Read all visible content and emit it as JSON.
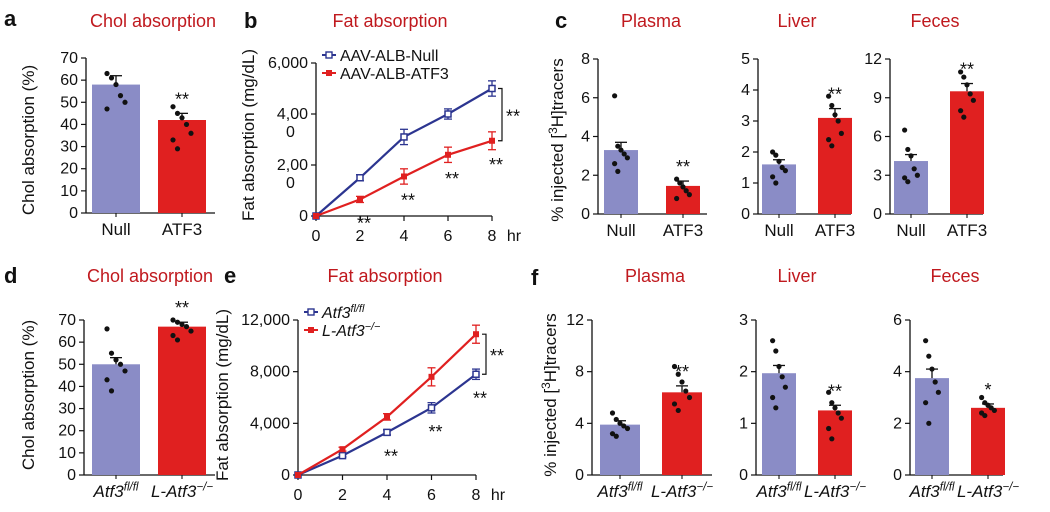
{
  "colors": {
    "null_bar": "#8a8cc6",
    "atf3_bar": "#e02020",
    "title": "#c0191e",
    "null_line": "#2c3590",
    "atf3_line": "#e02020",
    "axis": "#111111"
  },
  "chart_data": [
    {
      "id": "a",
      "panel_letter": "a",
      "type": "bar",
      "title": "Chol absorption",
      "ylabel": "Chol absorption (%)",
      "categories": [
        "Null",
        "ATF3"
      ],
      "category_italic": false,
      "values": [
        58,
        42
      ],
      "errors": [
        4,
        3
      ],
      "ylim": [
        0,
        70
      ],
      "yticks": [
        0,
        10,
        20,
        30,
        40,
        50,
        60,
        70
      ],
      "ytick_labels": [
        "0",
        "10",
        "20",
        "30",
        "40",
        "50",
        "60",
        "70"
      ],
      "sig": [
        "",
        "**"
      ],
      "points": [
        [
          63,
          61,
          58,
          53,
          50,
          47
        ],
        [
          48,
          45,
          43,
          40,
          36,
          33,
          29
        ]
      ]
    },
    {
      "id": "b",
      "panel_letter": "b",
      "type": "line",
      "title": "Fat absorption",
      "ylabel": "Fat absorption (mg/dL)",
      "x": [
        0,
        2,
        4,
        6,
        8
      ],
      "xticks": [
        0,
        2,
        4,
        6,
        8
      ],
      "xtick_labels": [
        "0",
        "2",
        "4",
        "6",
        "8"
      ],
      "xunit": "hr",
      "ylim": [
        0,
        6000
      ],
      "yticks": [
        0,
        2000,
        4000,
        6000
      ],
      "ytick_labels": [
        "0",
        "2,00\n0",
        "4,00\n0",
        "6,000"
      ],
      "legend": [
        "AAV-ALB-Null",
        "AAV-ALB-ATF3"
      ],
      "legend_italic": false,
      "series": [
        {
          "name": "AAV-ALB-Null",
          "values": [
            0,
            1500,
            3100,
            4000,
            5000
          ],
          "errors": [
            0,
            120,
            300,
            200,
            300
          ]
        },
        {
          "name": "AAV-ALB-ATF3",
          "values": [
            0,
            650,
            1550,
            2400,
            2950
          ],
          "errors": [
            0,
            120,
            300,
            300,
            350
          ]
        }
      ],
      "point_sig": [
        {
          "x": 2,
          "label": "**"
        },
        {
          "x": 4,
          "label": "**"
        },
        {
          "x": 6,
          "label": "**"
        },
        {
          "x": 8,
          "label": "**"
        }
      ],
      "bracket_label": "**"
    },
    {
      "id": "c1",
      "panel_letter": "c",
      "type": "bar",
      "title": "Plasma",
      "ylabel": "% injected [³H]tracers",
      "categories": [
        "Null",
        "ATF3"
      ],
      "category_italic": false,
      "values": [
        3.3,
        1.45
      ],
      "errors": [
        0.4,
        0.25
      ],
      "ylim": [
        0,
        8
      ],
      "yticks": [
        0,
        2,
        4,
        6,
        8
      ],
      "ytick_labels": [
        "0",
        "2",
        "4",
        "6",
        "8"
      ],
      "sig": [
        "",
        "**"
      ],
      "points": [
        [
          6.1,
          3.5,
          3.3,
          3.1,
          2.9,
          2.6,
          2.2
        ],
        [
          1.8,
          1.6,
          1.4,
          1.2,
          1.0,
          0.8
        ]
      ]
    },
    {
      "id": "c2",
      "type": "bar",
      "title": "Liver",
      "ylabel": "",
      "categories": [
        "Null",
        "ATF3"
      ],
      "category_italic": false,
      "values": [
        1.6,
        3.1
      ],
      "errors": [
        0.15,
        0.3
      ],
      "ylim": [
        0,
        5
      ],
      "yticks": [
        0,
        1,
        2,
        3,
        4,
        5
      ],
      "ytick_labels": [
        "0",
        "1",
        "2",
        "3",
        "4",
        "5"
      ],
      "sig": [
        "",
        "**"
      ],
      "points": [
        [
          2.0,
          1.9,
          1.7,
          1.5,
          1.4,
          1.2,
          1.0
        ],
        [
          3.8,
          3.5,
          3.2,
          3.0,
          2.6,
          2.4,
          2.2
        ]
      ]
    },
    {
      "id": "c3",
      "type": "bar",
      "title": "Feces",
      "ylabel": "",
      "categories": [
        "Null",
        "ATF3"
      ],
      "category_italic": false,
      "values": [
        4.1,
        9.5
      ],
      "errors": [
        0.5,
        0.6
      ],
      "ylim": [
        0,
        12
      ],
      "yticks": [
        0,
        3,
        6,
        9,
        12
      ],
      "ytick_labels": [
        "0",
        "3",
        "6",
        "9",
        "12"
      ],
      "sig": [
        "",
        "**"
      ],
      "points": [
        [
          6.5,
          5.0,
          4.5,
          3.5,
          3.0,
          2.8,
          2.5
        ],
        [
          11.0,
          10.6,
          10.0,
          9.3,
          8.8,
          8.0,
          7.5
        ]
      ]
    },
    {
      "id": "d",
      "panel_letter": "d",
      "type": "bar",
      "title": "Chol absorption",
      "ylabel": "Chol absorption (%)",
      "categories": [
        "Atf3fl/fl",
        "L-Atf3−/−"
      ],
      "category_italic": true,
      "values": [
        50,
        67
      ],
      "errors": [
        3,
        2
      ],
      "ylim": [
        0,
        70
      ],
      "yticks": [
        0,
        10,
        20,
        30,
        40,
        50,
        60,
        70
      ],
      "ytick_labels": [
        "0",
        "10",
        "20",
        "30",
        "40",
        "50",
        "60",
        "70"
      ],
      "sig": [
        "",
        "**"
      ],
      "points": [
        [
          66,
          55,
          52,
          50,
          47,
          43,
          38
        ],
        [
          70,
          69,
          68,
          67,
          65,
          63,
          61
        ]
      ]
    },
    {
      "id": "e",
      "panel_letter": "e",
      "type": "line",
      "title": "Fat absorption",
      "ylabel": "Fat absorption (mg/dL)",
      "x": [
        0,
        2,
        4,
        6,
        8
      ],
      "xticks": [
        0,
        2,
        4,
        6,
        8
      ],
      "xtick_labels": [
        "0",
        "2",
        "4",
        "6",
        "8"
      ],
      "xunit": "hr",
      "ylim": [
        0,
        12000
      ],
      "yticks": [
        0,
        4000,
        8000,
        12000
      ],
      "ytick_labels": [
        "0",
        "4,000",
        "8,000",
        "12,000"
      ],
      "legend": [
        "Atf3fl/fl",
        "L-Atf3−/−"
      ],
      "legend_italic": true,
      "series": [
        {
          "name": "Atf3fl/fl",
          "values": [
            0,
            1500,
            3300,
            5200,
            7800
          ],
          "errors": [
            0,
            100,
            200,
            400,
            400
          ]
        },
        {
          "name": "L-Atf3−/−",
          "values": [
            0,
            2000,
            4500,
            7600,
            10900
          ],
          "errors": [
            0,
            150,
            250,
            700,
            700
          ]
        }
      ],
      "point_sig": [
        {
          "x": 4,
          "label": "**"
        },
        {
          "x": 6,
          "label": "**"
        },
        {
          "x": 8,
          "label": "**"
        }
      ],
      "bracket_label": "**"
    },
    {
      "id": "f1",
      "panel_letter": "f",
      "type": "bar",
      "title": "Plasma",
      "ylabel": "% injected [³H]tracers",
      "categories": [
        "Atf3fl/fl",
        "L-Atf3−/−"
      ],
      "category_italic": true,
      "values": [
        3.9,
        6.4
      ],
      "errors": [
        0.3,
        0.5
      ],
      "ylim": [
        0,
        12
      ],
      "yticks": [
        0,
        4,
        8,
        12
      ],
      "ytick_labels": [
        "0",
        "4",
        "8",
        "12"
      ],
      "sig": [
        "",
        "**"
      ],
      "points": [
        [
          4.8,
          4.3,
          4.0,
          3.8,
          3.6,
          3.2,
          3.0
        ],
        [
          8.4,
          7.8,
          7.2,
          6.5,
          6.0,
          5.5,
          5.0
        ]
      ]
    },
    {
      "id": "f2",
      "type": "bar",
      "title": "Liver",
      "ylabel": "",
      "categories": [
        "Atf3fl/fl",
        "L-Atf3−/−"
      ],
      "category_italic": true,
      "values": [
        1.97,
        1.25
      ],
      "errors": [
        0.15,
        0.1
      ],
      "ylim": [
        0,
        3
      ],
      "yticks": [
        0,
        1,
        2,
        3
      ],
      "ytick_labels": [
        "0",
        "1",
        "2",
        "3"
      ],
      "sig": [
        "",
        "**"
      ],
      "points": [
        [
          2.6,
          2.4,
          2.1,
          1.9,
          1.7,
          1.5,
          1.3
        ],
        [
          1.6,
          1.4,
          1.3,
          1.2,
          1.1,
          0.9,
          0.7
        ]
      ]
    },
    {
      "id": "f3",
      "type": "bar",
      "title": "Feces",
      "ylabel": "",
      "categories": [
        "Atf3fl/fl",
        "L-Atf3−/−"
      ],
      "category_italic": true,
      "values": [
        3.75,
        2.6
      ],
      "errors": [
        0.35,
        0.15
      ],
      "ylim": [
        0,
        6
      ],
      "yticks": [
        0,
        2,
        4,
        6
      ],
      "ytick_labels": [
        "0",
        "2",
        "4",
        "6"
      ],
      "sig": [
        "",
        "*"
      ],
      "points": [
        [
          5.2,
          4.6,
          4.1,
          3.6,
          3.2,
          2.8,
          2.0
        ],
        [
          3.0,
          2.8,
          2.7,
          2.6,
          2.5,
          2.4,
          2.3
        ]
      ]
    }
  ]
}
